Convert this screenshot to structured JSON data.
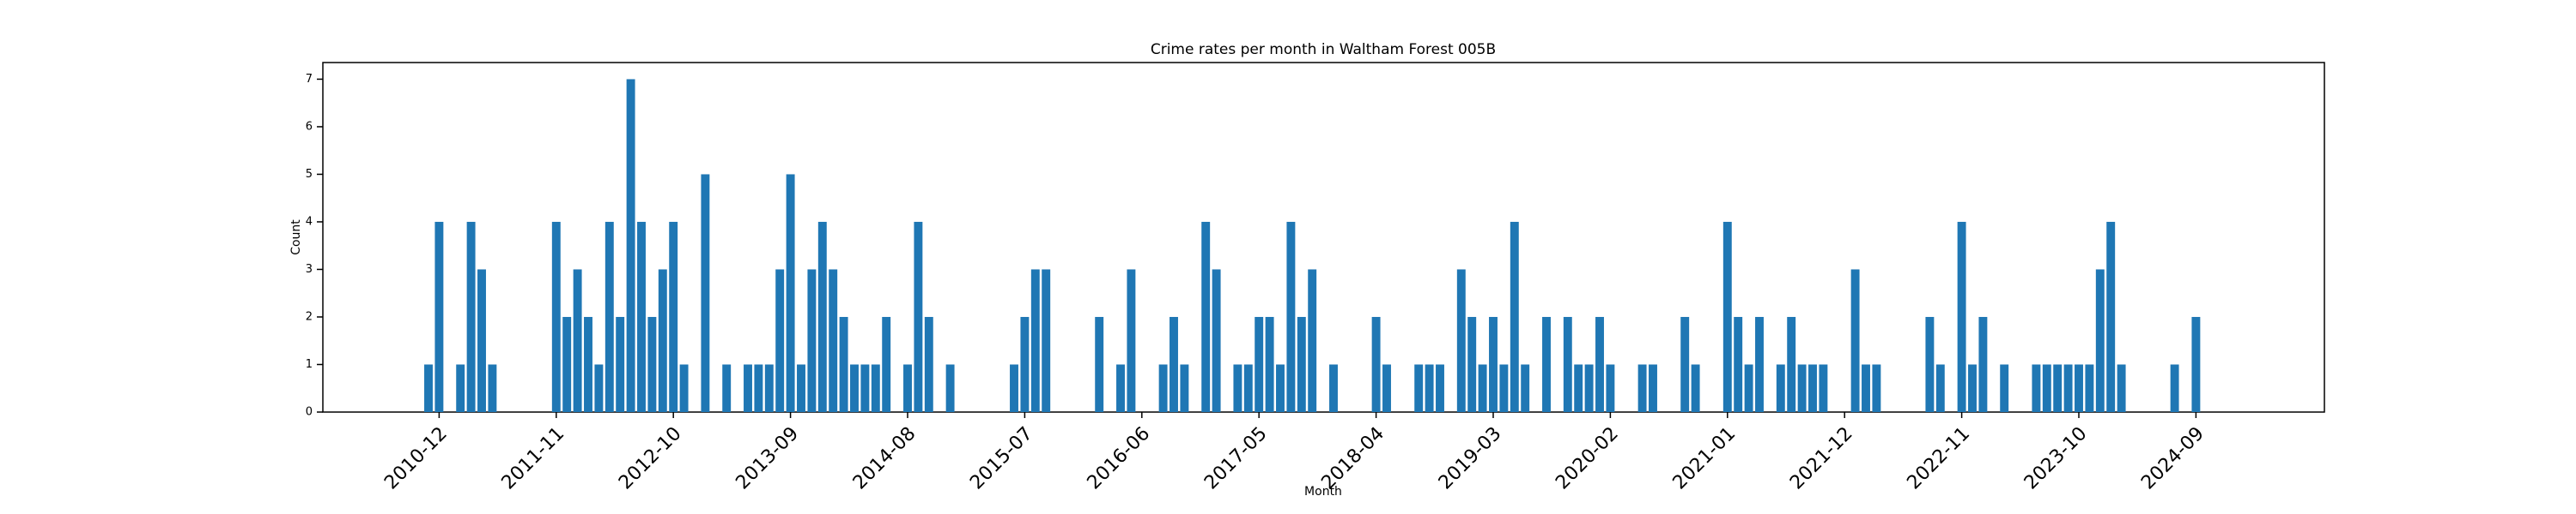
{
  "chart_data": {
    "type": "bar",
    "title": "Crime rates per month in Waltham Forest 005B",
    "x_label": "Month",
    "y_label": "Count",
    "color": "#1f77b4",
    "categories": [
      null,
      "2010-12",
      null,
      null,
      null,
      null,
      null,
      null,
      null,
      null,
      null,
      null,
      "2011-11",
      null,
      null,
      null,
      null,
      null,
      null,
      null,
      null,
      null,
      null,
      "2012-10",
      null,
      null,
      null,
      null,
      null,
      null,
      null,
      null,
      null,
      null,
      "2013-09",
      null,
      null,
      null,
      null,
      null,
      null,
      null,
      null,
      null,
      null,
      "2014-08",
      null,
      null,
      null,
      null,
      null,
      null,
      null,
      null,
      null,
      null,
      "2015-07",
      null,
      null,
      null,
      null,
      null,
      null,
      null,
      null,
      null,
      null,
      "2016-06",
      null,
      null,
      null,
      null,
      null,
      null,
      null,
      null,
      null,
      null,
      "2017-05",
      null,
      null,
      null,
      null,
      null,
      null,
      null,
      null,
      null,
      null,
      "2018-04",
      null,
      null,
      null,
      null,
      null,
      null,
      null,
      null,
      null,
      null,
      "2019-03",
      null,
      null,
      null,
      null,
      null,
      null,
      null,
      null,
      null,
      null,
      "2020-02",
      null,
      null,
      null,
      null,
      null,
      null,
      null,
      null,
      null,
      null,
      "2021-01",
      null,
      null,
      null,
      null,
      null,
      null,
      null,
      null,
      null,
      null,
      "2021-12",
      null,
      null,
      null,
      null,
      null,
      null,
      null,
      null,
      null,
      null,
      "2022-11",
      null,
      null,
      null,
      null,
      null,
      null,
      null,
      null,
      null,
      null,
      "2023-10",
      null,
      null,
      null,
      null,
      null,
      null,
      null,
      null,
      null,
      null,
      "2024-09"
    ],
    "values": [
      1,
      4,
      0,
      1,
      4,
      3,
      1,
      0,
      0,
      0,
      0,
      0,
      4,
      2,
      3,
      2,
      1,
      4,
      2,
      7,
      4,
      2,
      3,
      4,
      1,
      0,
      5,
      0,
      1,
      0,
      1,
      1,
      1,
      3,
      5,
      1,
      3,
      4,
      3,
      2,
      1,
      1,
      1,
      2,
      0,
      1,
      4,
      2,
      0,
      1,
      0,
      0,
      0,
      0,
      0,
      1,
      2,
      3,
      3,
      0,
      0,
      0,
      0,
      2,
      0,
      1,
      3,
      0,
      0,
      1,
      2,
      1,
      0,
      4,
      3,
      0,
      1,
      1,
      2,
      2,
      1,
      4,
      2,
      3,
      0,
      1,
      0,
      0,
      0,
      2,
      1,
      0,
      0,
      1,
      1,
      1,
      0,
      3,
      2,
      1,
      2,
      1,
      4,
      1,
      0,
      2,
      0,
      2,
      1,
      1,
      2,
      1,
      0,
      0,
      1,
      1,
      0,
      0,
      2,
      1,
      0,
      0,
      4,
      2,
      1,
      2,
      0,
      1,
      2,
      1,
      1,
      1,
      0,
      0,
      3,
      1,
      1,
      0,
      0,
      0,
      0,
      2,
      1,
      0,
      4,
      1,
      2,
      0,
      1,
      0,
      0,
      1,
      1,
      1,
      1,
      1,
      1,
      3,
      4,
      1,
      0,
      0,
      0,
      0,
      1,
      0,
      2
    ],
    "ylim": [
      0,
      7.35
    ],
    "yticks": [
      0,
      1,
      2,
      3,
      4,
      5,
      6,
      7
    ]
  }
}
